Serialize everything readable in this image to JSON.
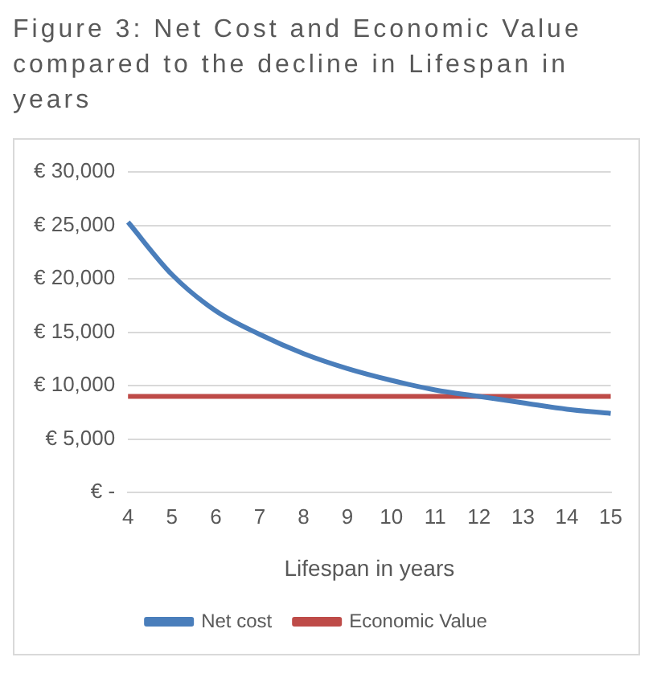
{
  "chart_data": {
    "type": "line",
    "title": "Figure 3: Net Cost and Economic Value compared to the decline in Lifespan in years",
    "xlabel": "Lifespan in years",
    "categories": [
      "4",
      "5",
      "6",
      "7",
      "8",
      "9",
      "10",
      "11",
      "12",
      "13",
      "14",
      "15"
    ],
    "series": [
      {
        "name": "Net cost",
        "color": "#4a7ebb",
        "values": [
          25300,
          20400,
          17000,
          14800,
          13000,
          11600,
          10500,
          9600,
          9000,
          8400,
          7800,
          7400
        ]
      },
      {
        "name": "Economic Value",
        "color": "#be4b48",
        "values": [
          9000,
          9000,
          9000,
          9000,
          9000,
          9000,
          9000,
          9000,
          9000,
          9000,
          9000,
          9000
        ]
      }
    ],
    "ylim": [
      0,
      30000
    ],
    "yticks": [
      {
        "value": 0,
        "label": "€ -"
      },
      {
        "value": 5000,
        "label": "€ 5,000"
      },
      {
        "value": 10000,
        "label": "€ 10,000"
      },
      {
        "value": 15000,
        "label": "€ 15,000"
      },
      {
        "value": 20000,
        "label": "€ 20,000"
      },
      {
        "value": 25000,
        "label": "€ 25,000"
      },
      {
        "value": 30000,
        "label": "€ 30,000"
      }
    ],
    "grid": "y",
    "legend": "bottom",
    "marker": "none",
    "line_style": "solid"
  }
}
